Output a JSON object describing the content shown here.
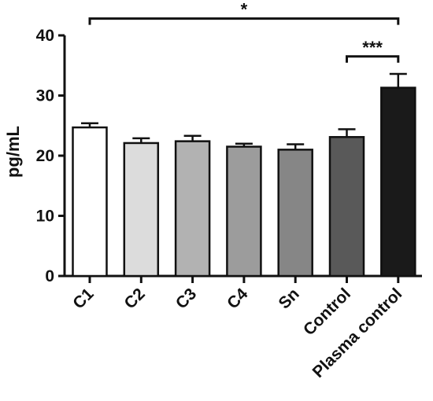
{
  "chart_data": {
    "type": "bar",
    "title": "",
    "xlabel": "",
    "ylabel": "pg/mL",
    "ylim": [
      0,
      40
    ],
    "yticks": [
      "0",
      "10",
      "20",
      "30",
      "40"
    ],
    "categories": [
      "C1",
      "C2",
      "C3",
      "C4",
      "Sn",
      "Control",
      "Plasma control"
    ],
    "values": [
      24.7,
      22.1,
      22.4,
      21.5,
      21.0,
      23.1,
      31.3
    ],
    "errors": [
      0.7,
      0.8,
      0.9,
      0.5,
      0.9,
      1.3,
      2.3
    ],
    "bar_colors": [
      "#ffffff",
      "#dcdcdc",
      "#b2b2b2",
      "#9c9c9c",
      "#868686",
      "#595959",
      "#1a1a1a"
    ],
    "grid": false,
    "legend": "none",
    "significance": [
      {
        "from": "C1",
        "to": "Plasma control",
        "label": "*",
        "y": 42.8
      },
      {
        "from": "Control",
        "to": "Plasma control",
        "label": "***",
        "y": 36.5
      }
    ]
  }
}
